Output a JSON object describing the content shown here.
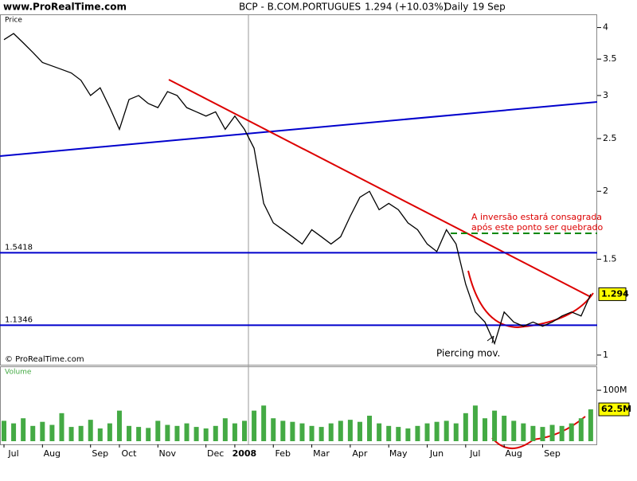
{
  "header": {
    "site": "www.ProRealTime.com",
    "title": "BCP - B.COM.PORTUGUES",
    "quote": "1.294 (+10.03%)",
    "period": "Daily",
    "date": "19 Sep"
  },
  "chart_data": [
    {
      "type": "line",
      "title": "Price",
      "log_scale": true,
      "copyright": "© ProRealTime.com",
      "categories": [
        "Jul",
        null,
        null,
        null,
        "Aug",
        null,
        null,
        null,
        null,
        "Sep",
        null,
        null,
        "Oct",
        null,
        null,
        null,
        "Nov",
        null,
        null,
        null,
        null,
        "Dec",
        null,
        null,
        "2008",
        null,
        null,
        null,
        "Feb",
        null,
        null,
        null,
        "Mar",
        null,
        null,
        null,
        "Apr",
        null,
        null,
        null,
        "May",
        null,
        null,
        null,
        "Jun",
        null,
        null,
        null,
        "Jul",
        null,
        null,
        null,
        "Aug",
        null,
        null,
        null,
        "Sep",
        null,
        null,
        null,
        null,
        null
      ],
      "series": [
        {
          "name": "BCP",
          "color": "#000000",
          "values": [
            3.8,
            3.9,
            3.75,
            3.6,
            3.45,
            3.4,
            3.35,
            3.3,
            3.2,
            3.0,
            3.1,
            2.85,
            2.6,
            2.95,
            3.0,
            2.9,
            2.85,
            3.05,
            3.0,
            2.85,
            2.8,
            2.75,
            2.8,
            2.6,
            2.75,
            2.6,
            2.4,
            1.9,
            1.75,
            1.7,
            1.65,
            1.6,
            1.7,
            1.65,
            1.6,
            1.65,
            1.8,
            1.95,
            2.0,
            1.85,
            1.9,
            1.85,
            1.75,
            1.7,
            1.6,
            1.55,
            1.7,
            1.6,
            1.35,
            1.2,
            1.15,
            1.05,
            1.2,
            1.15,
            1.13,
            1.15,
            1.13,
            1.15,
            1.18,
            1.2,
            1.18,
            1.294
          ]
        }
      ],
      "ylim": [
        0.96,
        4.23
      ],
      "yticks": [
        1,
        1.5,
        2,
        2.5,
        3,
        3.5,
        4
      ],
      "levels": [
        1.5418,
        1.1346
      ],
      "annotations": [
        "A inversão estará consagrada",
        "após este ponto ser quebrado",
        "Piercing mov."
      ]
    },
    {
      "type": "bar",
      "title": "Volume",
      "color": "#44aa44",
      "values": [
        40000000,
        35000000,
        45000000,
        30000000,
        38000000,
        32000000,
        55000000,
        28000000,
        30000000,
        42000000,
        25000000,
        35000000,
        60000000,
        30000000,
        28000000,
        26000000,
        40000000,
        32000000,
        30000000,
        35000000,
        28000000,
        25000000,
        30000000,
        45000000,
        35000000,
        40000000,
        60000000,
        70000000,
        45000000,
        40000000,
        38000000,
        35000000,
        30000000,
        28000000,
        35000000,
        40000000,
        42000000,
        38000000,
        50000000,
        35000000,
        30000000,
        28000000,
        25000000,
        30000000,
        35000000,
        38000000,
        40000000,
        35000000,
        55000000,
        70000000,
        45000000,
        60000000,
        50000000,
        40000000,
        35000000,
        30000000,
        28000000,
        32000000,
        30000000,
        35000000,
        45000000,
        62500000
      ],
      "value_labels_index": 61,
      "value_labels": [
        "62.5M"
      ],
      "ylim": [
        0,
        147000000
      ],
      "yticks": [
        {
          "value": 100000000,
          "label": "100M"
        }
      ]
    }
  ]
}
